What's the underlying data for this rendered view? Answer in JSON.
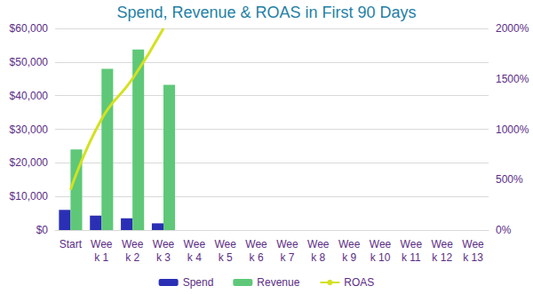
{
  "chart_data": {
    "type": "bar",
    "title": "Spend, Revenue & ROAS in First 90 Days",
    "categories": [
      "Start",
      "Week 1",
      "Week 2",
      "Week 3",
      "Week 4",
      "Week 5",
      "Week 6",
      "Week 7",
      "Week 8",
      "Week 9",
      "Week 10",
      "Week 11",
      "Week 12",
      "Week 13"
    ],
    "series": [
      {
        "name": "Spend",
        "type": "bar",
        "color": "#2a2fb5",
        "values": [
          6000,
          4300,
          3500,
          2000,
          null,
          null,
          null,
          null,
          null,
          null,
          null,
          null,
          null,
          null
        ]
      },
      {
        "name": "Revenue",
        "type": "bar",
        "color": "#5ec878",
        "values": [
          24000,
          48000,
          53700,
          43200,
          null,
          null,
          null,
          null,
          null,
          null,
          null,
          null,
          null,
          null
        ]
      },
      {
        "name": "ROAS",
        "type": "line",
        "axis": "y2",
        "color": "#d4e11f",
        "line_style": "solid",
        "values": [
          400,
          1100,
          1500,
          2000,
          null,
          null,
          null,
          null,
          null,
          null,
          null,
          null,
          null,
          null
        ]
      }
    ],
    "ylim": [
      0,
      60000
    ],
    "yticks": [
      {
        "value": 0,
        "label": "$0"
      },
      {
        "value": 10000,
        "label": "$10,000"
      },
      {
        "value": 20000,
        "label": "$20,000"
      },
      {
        "value": 30000,
        "label": "$30,000"
      },
      {
        "value": 40000,
        "label": "$40,000"
      },
      {
        "value": 50000,
        "label": "$50,000"
      },
      {
        "value": 60000,
        "label": "$60,000"
      }
    ],
    "y2lim": [
      0,
      2000
    ],
    "y2ticks": [
      {
        "value": 0,
        "label": "0%"
      },
      {
        "value": 500,
        "label": "500%"
      },
      {
        "value": 1000,
        "label": "1000%"
      },
      {
        "value": 1500,
        "label": "1500%"
      },
      {
        "value": 2000,
        "label": "2000%"
      }
    ],
    "grid": true,
    "legend": "bottom"
  }
}
